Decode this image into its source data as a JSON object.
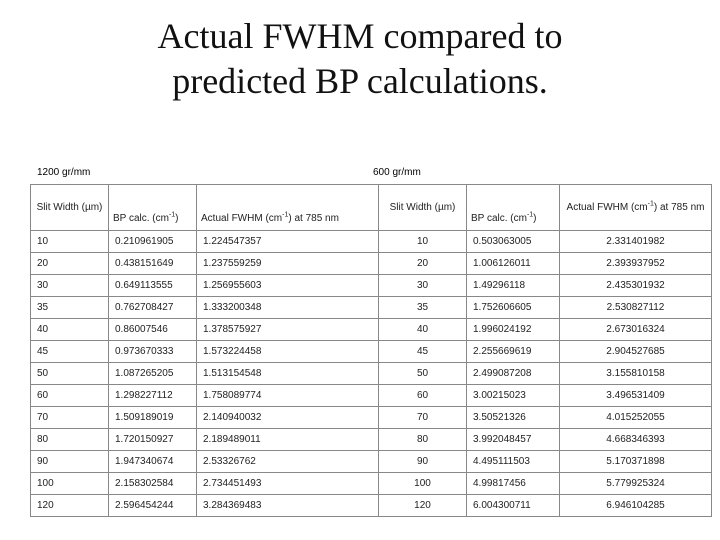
{
  "title": {
    "line1": "Actual FWHM compared to",
    "line2": "predicted BP calculations."
  },
  "groups": {
    "left_label": "1200 gr/mm",
    "right_label": "600 gr/mm"
  },
  "headers": {
    "slit_width_1": "Slit Width (µm)",
    "bp_calc_1": "BP calc. (cm",
    "bp_calc_1_sup": "-1",
    "bp_calc_1_end": ")",
    "fwhm_1": "Actual FWHM (cm",
    "fwhm_1_sup": "-1",
    "fwhm_1_end": ") at 785 nm",
    "slit_width_2": "Slit Width (µm)",
    "bp_calc_2": "BP calc. (cm",
    "bp_calc_2_sup": "-1",
    "bp_calc_2_end": ")",
    "fwhm_2": "Actual FWHM (cm",
    "fwhm_2_sup": "-1",
    "fwhm_2_end": ") at 785 nm"
  },
  "rows": [
    [
      "10",
      "0.210961905",
      "1.224547357",
      "10",
      "0.503063005",
      "2.331401982"
    ],
    [
      "20",
      "0.438151649",
      "1.237559259",
      "20",
      "1.006126011",
      "2.393937952"
    ],
    [
      "30",
      "0.649113555",
      "1.256955603",
      "30",
      "1.49296118",
      "2.435301932"
    ],
    [
      "35",
      "0.762708427",
      "1.333200348",
      "35",
      "1.752606605",
      "2.530827112"
    ],
    [
      "40",
      "0.86007546",
      "1.378575927",
      "40",
      "1.996024192",
      "2.673016324"
    ],
    [
      "45",
      "0.973670333",
      "1.573224458",
      "45",
      "2.255669619",
      "2.904527685"
    ],
    [
      "50",
      "1.087265205",
      "1.513154548",
      "50",
      "2.499087208",
      "3.155810158"
    ],
    [
      "60",
      "1.298227112",
      "1.758089774",
      "60",
      "3.00215023",
      "3.496531409"
    ],
    [
      "70",
      "1.509189019",
      "2.140940032",
      "70",
      "3.50521326",
      "4.015252055"
    ],
    [
      "80",
      "1.720150927",
      "2.189489011",
      "80",
      "3.992048457",
      "4.668346393"
    ],
    [
      "90",
      "1.947340674",
      "2.53326762",
      "90",
      "4.495111503",
      "5.170371898"
    ],
    [
      "100",
      "2.158302584",
      "2.734451493",
      "100",
      "4.99817456",
      "5.779925324"
    ],
    [
      "120",
      "2.596454244",
      "3.284369483",
      "120",
      "6.004300711",
      "6.946104285"
    ]
  ]
}
